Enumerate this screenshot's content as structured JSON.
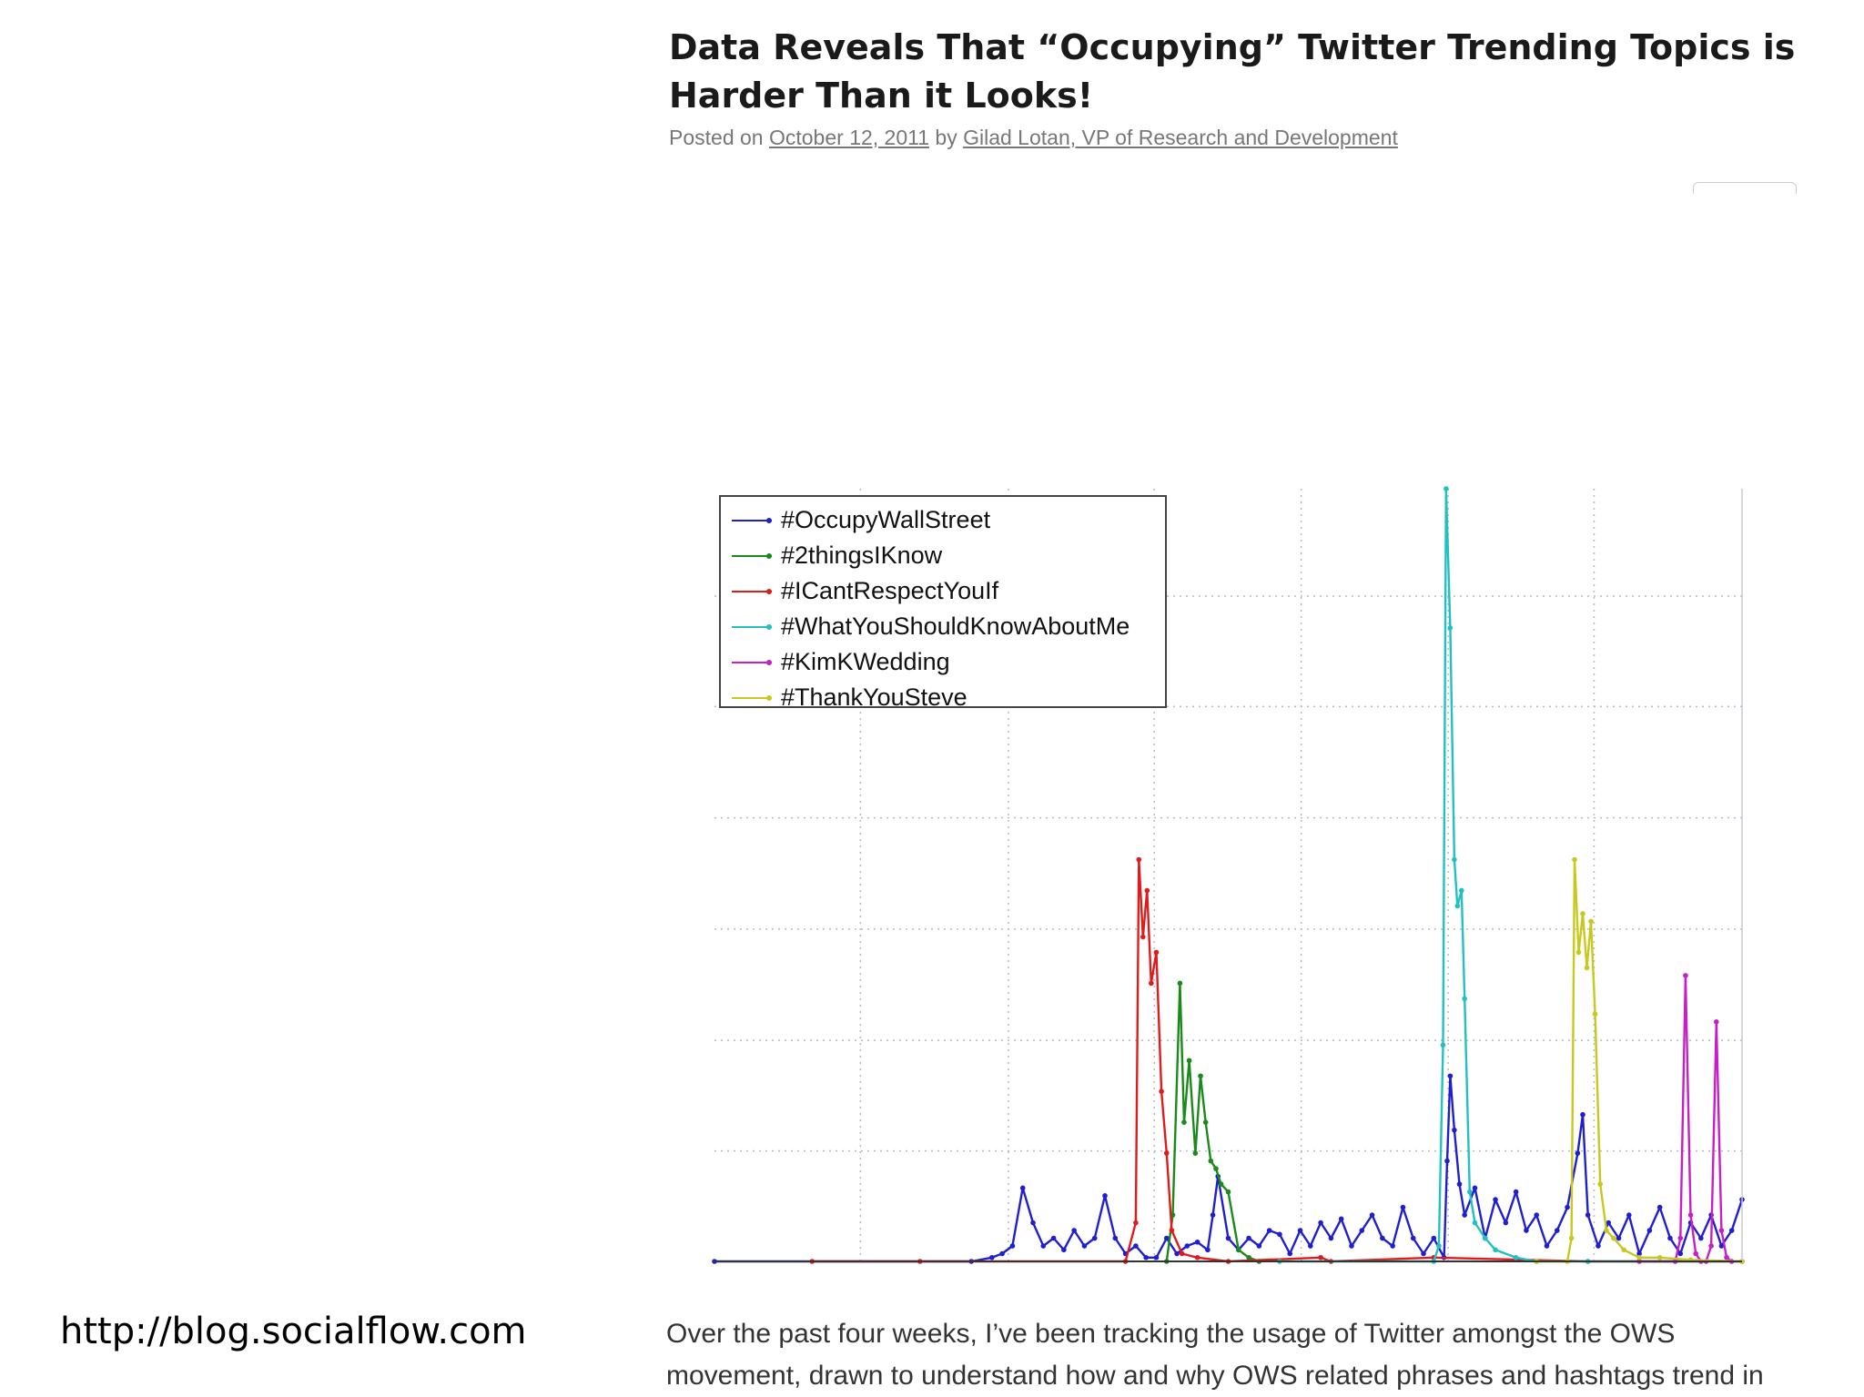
{
  "post": {
    "title": "Data Reveals That “Occupying” Twitter Trending Topics is Harder Than it Looks!",
    "posted_on_label": "Posted on",
    "date": "October 12, 2011",
    "by_label": "by",
    "author": "Gilad Lotan, VP of Research and Development",
    "body_line1": "Over the past four weeks, I’ve been tracking the usage of Twitter amongst the OWS",
    "body_line2": "movement, drawn to understand how and why OWS related phrases and hashtags trend in"
  },
  "footer": {
    "source_url": "http://blog.socialflow.com"
  },
  "chart_data": {
    "type": "line",
    "title": "",
    "xlabel": "",
    "ylabel": "",
    "xlim": [
      0,
      100
    ],
    "ylim": [
      0,
      100
    ],
    "x_gridlines": [
      14.2,
      28.6,
      42.8,
      57.1,
      71.4,
      85.6
    ],
    "y_gridlines": [
      14.3,
      28.6,
      43.0,
      57.4,
      71.8,
      86.1
    ],
    "grid": true,
    "legend_position": "top-left",
    "series": [
      {
        "name": "#OccupyWallStreet",
        "color": "#1f1fd0",
        "x": [
          0,
          25,
          27,
          28,
          29,
          30,
          31,
          32,
          33,
          34,
          35,
          36,
          37,
          38,
          39,
          40,
          41,
          42,
          43,
          44,
          45,
          46,
          47,
          48,
          48.5,
          49,
          50,
          51,
          52,
          53,
          54,
          55,
          56,
          57,
          58,
          59,
          60,
          61,
          62,
          63,
          64,
          65,
          66,
          67,
          68,
          69,
          70,
          71,
          71.3,
          71.6,
          72,
          72.5,
          73,
          74,
          75,
          76,
          77,
          78,
          79,
          80,
          81,
          82,
          83,
          84,
          84.5,
          85,
          86,
          87,
          88,
          89,
          90,
          91,
          92,
          93,
          94,
          95,
          96,
          97,
          98,
          99,
          100
        ],
        "y": [
          0,
          0,
          0.5,
          1,
          2,
          9.5,
          5,
          2,
          3,
          1.5,
          4,
          2,
          3,
          8.5,
          3,
          1,
          2,
          0.5,
          0.5,
          3,
          1,
          2,
          2.5,
          1.5,
          6,
          11,
          3,
          1.5,
          3,
          2,
          4,
          3.5,
          1,
          4,
          2,
          5,
          3,
          5.5,
          2,
          4,
          6,
          3,
          2,
          7,
          3,
          1,
          3,
          0.5,
          13,
          24,
          17,
          10,
          6,
          9.5,
          3,
          8,
          5,
          9,
          4,
          6,
          2,
          4,
          7,
          14,
          19,
          6,
          2,
          5,
          3,
          6,
          1,
          4,
          7,
          3,
          1,
          5,
          3,
          6,
          2,
          4,
          8
        ]
      },
      {
        "name": "#2thingsIKnow",
        "color": "#1a8a1a",
        "x": [
          44,
          44.6,
          45.3,
          45.7,
          46.2,
          46.8,
          47.3,
          47.8,
          48.3,
          48.8,
          49.3,
          50,
          51,
          52,
          53
        ],
        "y": [
          0,
          6,
          36,
          18,
          26,
          14,
          24,
          18,
          13,
          12,
          10,
          9,
          1.5,
          0.5,
          0
        ]
      },
      {
        "name": "#ICantRespectYouIf",
        "color": "#e01b1b",
        "x": [
          9.5,
          20,
          40,
          41,
          41.3,
          41.7,
          42.1,
          42.5,
          43,
          43.5,
          44,
          44.5,
          45.5,
          47,
          50,
          59,
          60,
          70,
          85,
          100
        ],
        "y": [
          0,
          0,
          0,
          5,
          52,
          42,
          48,
          36,
          40,
          22,
          14,
          4,
          1,
          0.5,
          0,
          0.5,
          0,
          0.5,
          0,
          0
        ]
      },
      {
        "name": "#WhatYouShouldKnowAboutMe",
        "color": "#22c0c0",
        "x": [
          55,
          70,
          70.5,
          70.9,
          71.2,
          71.6,
          72,
          72.3,
          72.7,
          73,
          73.5,
          74,
          75,
          76,
          78,
          80,
          85,
          100
        ],
        "y": [
          0,
          0,
          2,
          28,
          100,
          82,
          52,
          46,
          48,
          34,
          9,
          5,
          3,
          1.5,
          0.5,
          0,
          0,
          0
        ]
      },
      {
        "name": "#KimKWedding",
        "color": "#c81ec8",
        "x": [
          90,
          93.5,
          94,
          94.5,
          95,
          95.5,
          96,
          96.5,
          97,
          97.5,
          98,
          98.5,
          99
        ],
        "y": [
          0,
          0,
          3,
          37,
          6,
          1,
          0,
          0,
          2,
          31,
          4,
          0.5,
          0
        ]
      },
      {
        "name": "#ThankYouSteve",
        "color": "#c8c81e",
        "x": [
          80,
          83,
          83.4,
          83.7,
          84.1,
          84.5,
          84.9,
          85.3,
          85.7,
          86.2,
          86.8,
          87.5,
          88.5,
          90,
          92,
          95,
          100
        ],
        "y": [
          0,
          0,
          3,
          52,
          40,
          45,
          38,
          44,
          32,
          10,
          4,
          3,
          1.5,
          0.5,
          0.5,
          0.2,
          0
        ]
      }
    ]
  }
}
